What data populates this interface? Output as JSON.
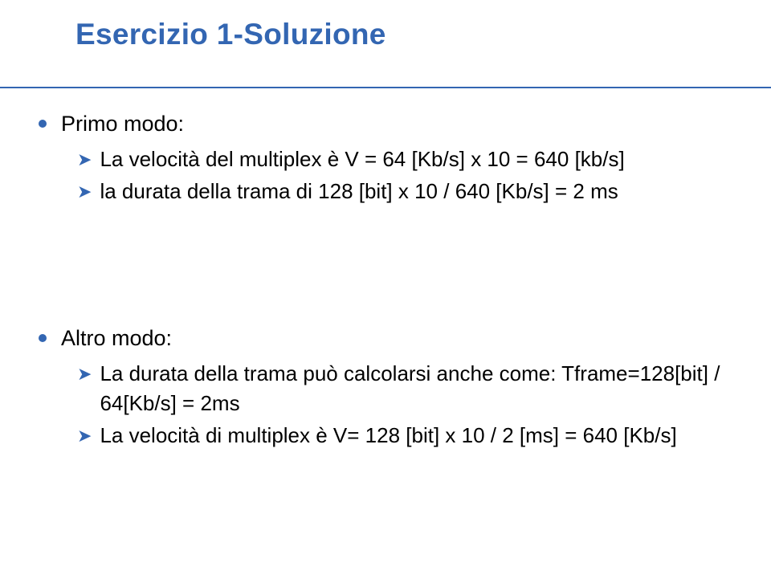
{
  "title": "Esercizio 1-Soluzione",
  "block1": {
    "heading": "Primo modo:",
    "items": [
      "La velocità del multiplex è V = 64 [Kb/s] x 10 = 640 [kb/s]",
      "la durata della trama di 128 [bit] x 10 / 640 [Kb/s] = 2 ms"
    ]
  },
  "block2": {
    "heading": "Altro modo:",
    "items": [
      "La durata della trama può calcolarsi anche come: Tframe=128[bit] / 64[Kb/s] = 2ms",
      "La velocità di multiplex è V= 128 [bit] x 10 / 2 [ms] = 640 [Kb/s]"
    ]
  },
  "colors": {
    "accent": "#3366b2",
    "text": "#000000",
    "background": "#ffffff"
  }
}
